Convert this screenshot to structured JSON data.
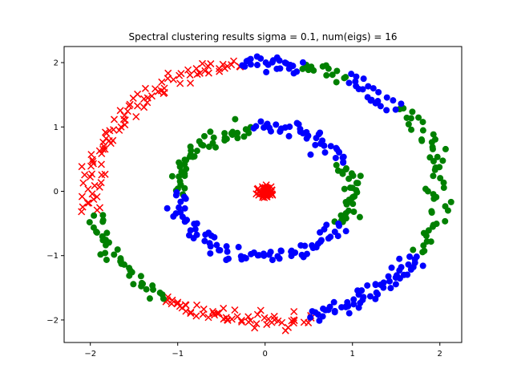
{
  "chart_data": {
    "type": "scatter",
    "title": "Spectral clustering results sigma = 0.1, num(eigs) = 16",
    "xlabel": "",
    "ylabel": "",
    "xlim": [
      -2.3,
      2.25
    ],
    "ylim": [
      -2.35,
      2.25
    ],
    "xticks": [
      -2,
      -1,
      0,
      1,
      2
    ],
    "yticks": [
      -2,
      -1,
      0,
      1,
      2
    ],
    "grid": false,
    "legend": "none",
    "colors": {
      "red": "#ff0000",
      "green": "#008000",
      "blue": "#0000ff"
    },
    "series": [
      {
        "color": "#ff0000",
        "marker": "x",
        "arcs": [
          {
            "radius": 0.0,
            "start_deg": 0,
            "end_deg": 360,
            "count": 45,
            "spread": 0.06
          },
          {
            "radius": 2.0,
            "start_deg": 98,
            "end_deg": 190,
            "count": 95,
            "spread": 0.06
          },
          {
            "radius": 2.0,
            "start_deg": 235,
            "end_deg": 285,
            "count": 60,
            "spread": 0.06
          }
        ]
      },
      {
        "color": "#008000",
        "marker": "o",
        "arcs": [
          {
            "radius": 2.0,
            "start_deg": 190,
            "end_deg": 235,
            "count": 40,
            "spread": 0.06
          },
          {
            "radius": 2.0,
            "start_deg": 12,
            "end_deg": 40,
            "count": 22,
            "spread": 0.06
          },
          {
            "radius": 2.0,
            "start_deg": 62,
            "end_deg": 78,
            "count": 14,
            "spread": 0.06
          },
          {
            "radius": 2.0,
            "start_deg": -30,
            "end_deg": 12,
            "count": 30,
            "spread": 0.06
          },
          {
            "radius": 1.0,
            "start_deg": 98,
            "end_deg": 182,
            "count": 48,
            "spread": 0.06
          },
          {
            "radius": 1.0,
            "start_deg": -30,
            "end_deg": 25,
            "count": 34,
            "spread": 0.06
          }
        ]
      },
      {
        "color": "#0000ff",
        "marker": "o",
        "arcs": [
          {
            "radius": 2.0,
            "start_deg": 78,
            "end_deg": 98,
            "count": 26,
            "spread": 0.06
          },
          {
            "radius": 2.0,
            "start_deg": 40,
            "end_deg": 62,
            "count": 22,
            "spread": 0.06
          },
          {
            "radius": 2.0,
            "start_deg": 285,
            "end_deg": 330,
            "count": 60,
            "spread": 0.06
          },
          {
            "radius": 1.0,
            "start_deg": 25,
            "end_deg": 98,
            "count": 42,
            "spread": 0.06
          },
          {
            "radius": 1.0,
            "start_deg": 182,
            "end_deg": 330,
            "count": 80,
            "spread": 0.06
          }
        ]
      }
    ]
  }
}
